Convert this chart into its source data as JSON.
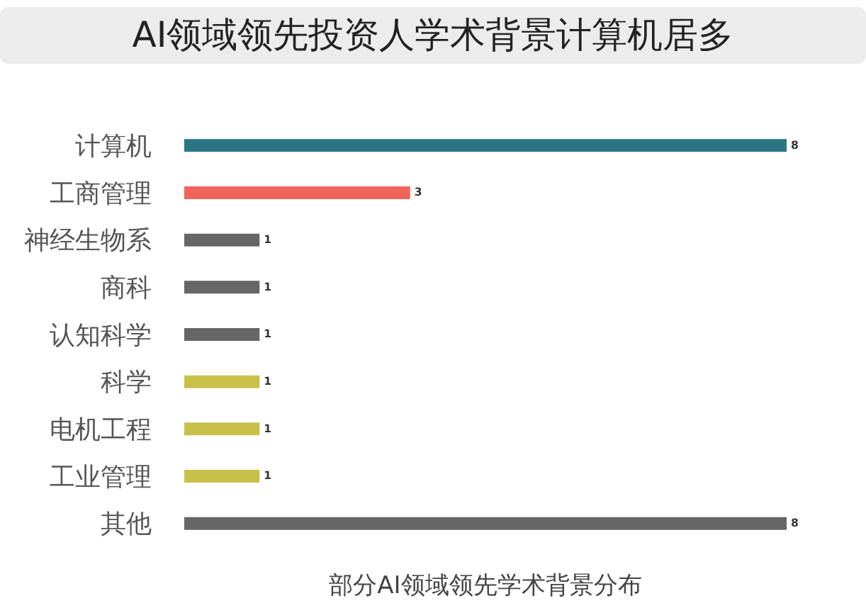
{
  "chart_data": {
    "type": "bar",
    "orientation": "horizontal",
    "title": "AI领域领先投资人学术背景计算机居多",
    "xlabel": "部分AI领域领先学术背景分布",
    "categories": [
      "计算机",
      "工商管理",
      "神经生物系",
      "商科",
      "认知科学",
      "科学",
      "电机工程",
      "工业管理",
      "其他"
    ],
    "values": [
      8,
      3,
      1,
      1,
      1,
      1,
      1,
      1,
      8
    ],
    "colors": [
      "#2a7683",
      "#f0645a",
      "#666666",
      "#666666",
      "#666666",
      "#c8c04a",
      "#c8c04a",
      "#c8c04a",
      "#666666"
    ],
    "xlim": [
      0,
      8
    ],
    "tick_labels": "y",
    "data_labels": true
  }
}
